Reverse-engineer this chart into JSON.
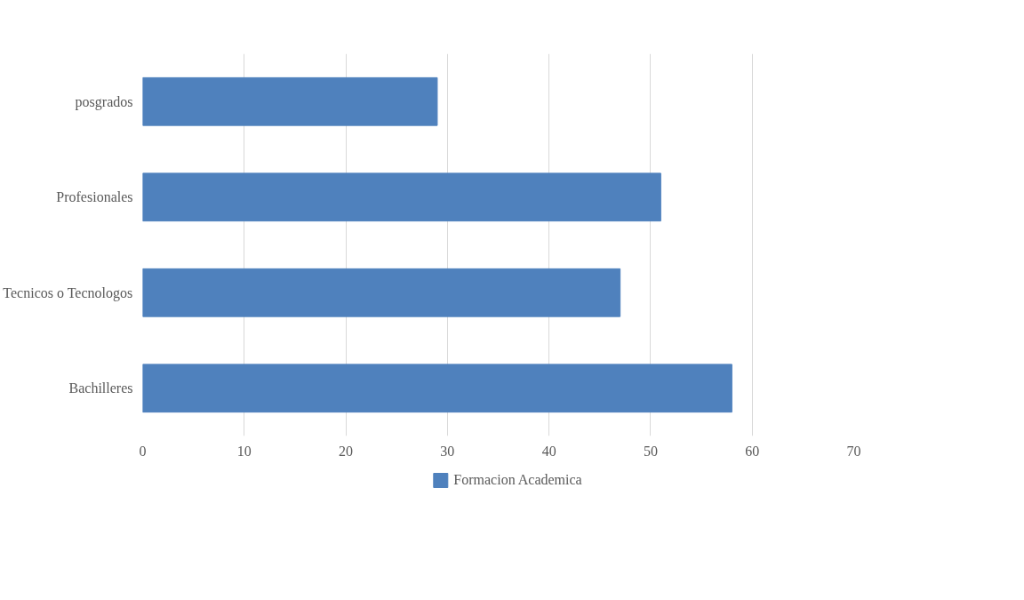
{
  "chart_data": {
    "type": "bar",
    "orientation": "horizontal",
    "categories": [
      "posgrados",
      "Profesionales",
      "Tecnicos o Tecnologos",
      "Bachilleres"
    ],
    "series": [
      {
        "name": "Formacion Academica",
        "color": "#4f81bd",
        "values": [
          29,
          51,
          47,
          58
        ]
      }
    ],
    "xlim": [
      0,
      70
    ],
    "xticks": [
      0,
      10,
      20,
      30,
      40,
      50,
      60,
      70
    ],
    "grid": "x",
    "legend": "bottom"
  }
}
